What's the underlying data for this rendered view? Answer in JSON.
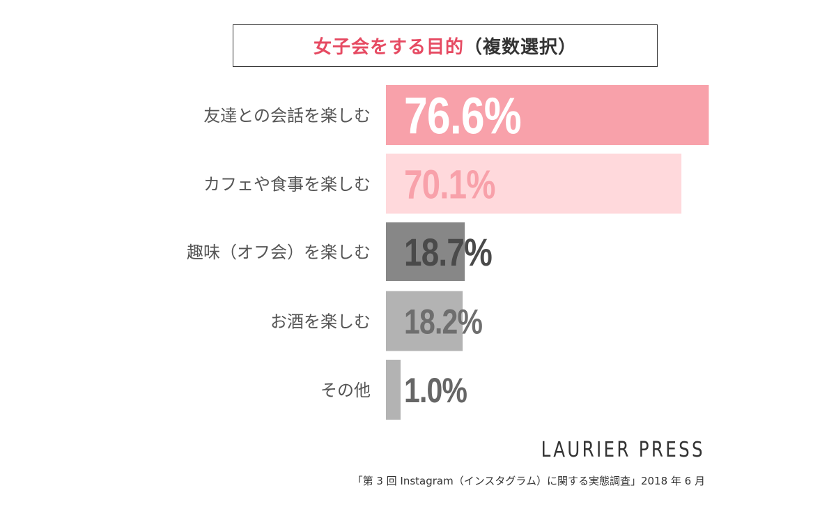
{
  "title": {
    "main": "女子会をする目的",
    "paren": "（複数選択）"
  },
  "chart_data": {
    "type": "bar",
    "orientation": "horizontal",
    "title": "女子会をする目的（複数選択）",
    "categories": [
      "友達との会話を楽しむ",
      "カフェや食事を楽しむ",
      "趣味（オフ会）を楽しむ",
      "お酒を楽しむ",
      "その他"
    ],
    "values": [
      76.6,
      70.1,
      18.7,
      18.2,
      1.0
    ],
    "value_labels": [
      "76.6%",
      "70.1%",
      "18.7%",
      "18.2%",
      "1.0%"
    ],
    "unit": "%",
    "xlim": [
      0,
      100
    ],
    "grid": false,
    "legend": "none",
    "bar_colors": [
      "#f8a1aa",
      "#ffd9dc",
      "#878787",
      "#b3b3b3",
      "#b3b3b3"
    ],
    "label_colors": [
      "#ffffff",
      "#f8a1aa",
      "#4a4a4a",
      "#6e6e6e",
      "#666666"
    ]
  },
  "brand": "LAURIER PRESS",
  "source": "「第 3 回 Instagram（インスタグラム）に関する実態調査」2018 年 6 月"
}
